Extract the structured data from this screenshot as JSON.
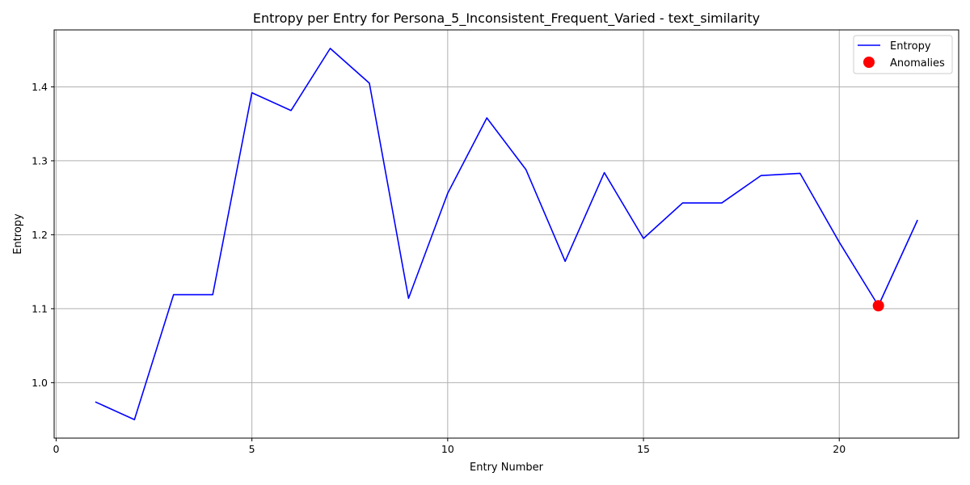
{
  "chart_data": {
    "type": "line",
    "title": "Entropy per Entry for Persona_5_Inconsistent_Frequent_Varied - text_similarity",
    "xlabel": "Entry Number",
    "ylabel": "Entropy",
    "xlim": [
      -0.05,
      23.05
    ],
    "ylim": [
      0.925,
      1.477
    ],
    "xticks": [
      0,
      5,
      10,
      15,
      20
    ],
    "xtick_labels": [
      "0",
      "5",
      "10",
      "15",
      "20"
    ],
    "yticks": [
      1.0,
      1.1,
      1.2,
      1.3,
      1.4
    ],
    "ytick_labels": [
      "1.0",
      "1.1",
      "1.2",
      "1.3",
      "1.4"
    ],
    "grid": true,
    "legend_position": "top-right",
    "series": [
      {
        "name": "Entropy",
        "kind": "line",
        "color": "#0000ff",
        "x": [
          1,
          2,
          3,
          4,
          5,
          6,
          7,
          8,
          9,
          10,
          11,
          12,
          13,
          14,
          15,
          16,
          17,
          18,
          19,
          20,
          21,
          22
        ],
        "y": [
          0.974,
          0.95,
          1.119,
          1.119,
          1.392,
          1.368,
          1.452,
          1.405,
          1.114,
          1.256,
          1.358,
          1.288,
          1.164,
          1.284,
          1.195,
          1.243,
          1.243,
          1.28,
          1.283,
          1.19,
          1.104,
          1.22
        ]
      },
      {
        "name": "Anomalies",
        "kind": "scatter",
        "color": "#ff0000",
        "x": [
          21
        ],
        "y": [
          1.104
        ]
      }
    ]
  }
}
